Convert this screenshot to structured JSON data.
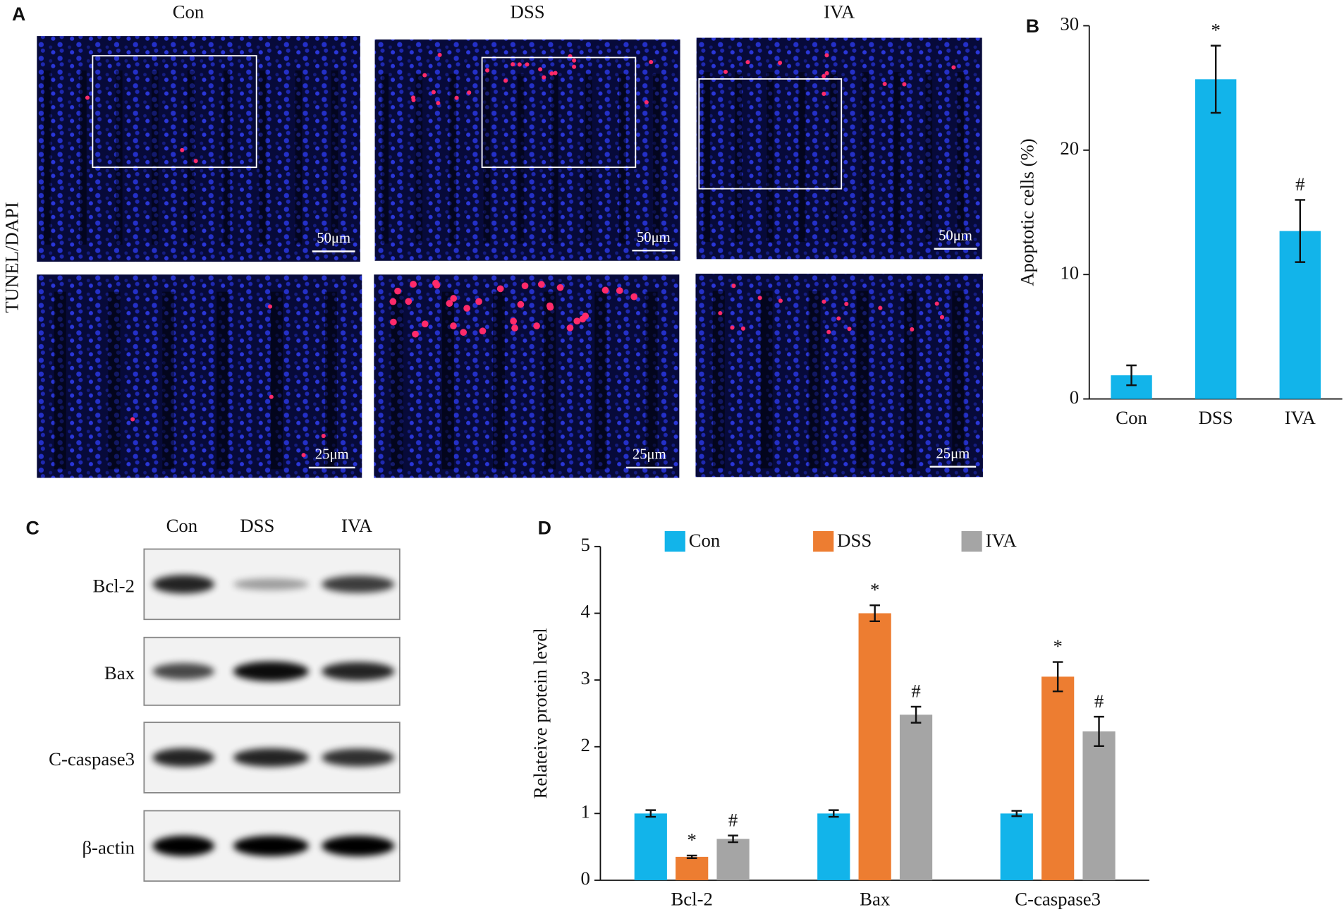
{
  "panel_labels": [
    "A",
    "B",
    "C",
    "D"
  ],
  "panel_a": {
    "groups": [
      "Con",
      "DSS",
      "IVA"
    ],
    "stain": "TUNEL/DAPI",
    "scale_bars": {
      "top": "50μm",
      "bottom": "25μm"
    }
  },
  "panel_c": {
    "lanes": [
      "Con",
      "DSS",
      "IVA"
    ],
    "proteins": [
      "Bcl-2",
      "Bax",
      "C-caspase3",
      "β-actin"
    ]
  },
  "chart_data": [
    {
      "type": "bar",
      "y_label": "Apoptotic cells (%)",
      "categories": [
        "Con",
        "DSS",
        "IVA"
      ],
      "values": [
        1.9,
        25.7,
        13.5
      ],
      "errors": [
        0.8,
        2.7,
        2.5
      ],
      "annotations": [
        null,
        "*",
        "#"
      ],
      "color": "#12b4ea",
      "ylim": [
        0,
        30
      ],
      "yticks": [
        0,
        10,
        20,
        30
      ]
    },
    {
      "type": "grouped_bar",
      "y_label": "Relateive protein level",
      "categories": [
        "Bcl-2",
        "Bax",
        "C-caspase3"
      ],
      "series": [
        {
          "name": "Con",
          "color": "#12b4ea",
          "values": [
            1.0,
            1.0,
            1.0
          ],
          "errors": [
            0.05,
            0.05,
            0.04
          ],
          "annotations": [
            null,
            null,
            null
          ]
        },
        {
          "name": "DSS",
          "color": "#ed7d31",
          "values": [
            0.35,
            4.0,
            3.05
          ],
          "errors": [
            0.02,
            0.12,
            0.22
          ],
          "annotations": [
            "*",
            "*",
            "*"
          ]
        },
        {
          "name": "IVA",
          "color": "#a5a5a5",
          "values": [
            0.62,
            2.48,
            2.23
          ],
          "errors": [
            0.05,
            0.12,
            0.22
          ],
          "annotations": [
            "#",
            "#",
            "#"
          ]
        }
      ],
      "ylim": [
        0,
        5
      ],
      "yticks": [
        0,
        1,
        2,
        3,
        4,
        5
      ],
      "legend": "top"
    }
  ]
}
